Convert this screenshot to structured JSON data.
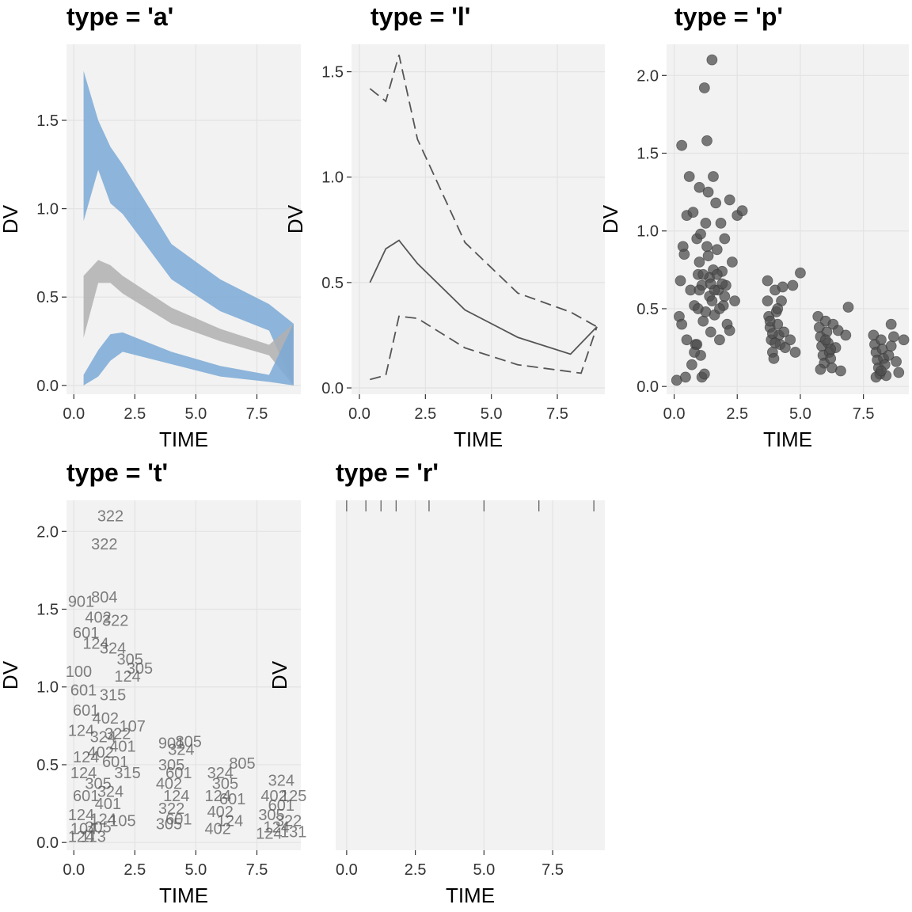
{
  "chart_data": [
    {
      "panel": "a",
      "type": "area",
      "title": "type = 'a'",
      "xlabel": "TIME",
      "ylabel": "DV",
      "xlim": [
        -0.3,
        9.3
      ],
      "ylim": [
        -0.05,
        1.93
      ],
      "xticks": [
        "0.0",
        "2.5",
        "5.0",
        "7.5"
      ],
      "xtick_values": [
        0,
        2.5,
        5,
        7.5
      ],
      "yticks": [
        "0.0",
        "0.5",
        "1.0",
        "1.5"
      ],
      "ytick_values": [
        0,
        0.5,
        1,
        1.5
      ],
      "grid": true,
      "colors": {
        "outer_band": "#7BA9D6",
        "inner_band": "#B0B0B0",
        "panel_bg": "#F2F2F2",
        "grid": "#E3E3E3"
      },
      "x": [
        0.4,
        1,
        1.5,
        2,
        4,
        6,
        8,
        9
      ],
      "series": [
        {
          "band": "upper",
          "low": [
            0.93,
            1.22,
            1.03,
            0.97,
            0.6,
            0.42,
            0.31,
            0.0
          ],
          "high": [
            1.78,
            1.5,
            1.35,
            1.25,
            0.8,
            0.6,
            0.46,
            0.35
          ]
        },
        {
          "band": "middle",
          "low": [
            0.27,
            0.58,
            0.58,
            0.52,
            0.35,
            0.25,
            0.17,
            0.0
          ],
          "high": [
            0.62,
            0.71,
            0.68,
            0.62,
            0.44,
            0.32,
            0.23,
            0.35
          ]
        },
        {
          "band": "lower",
          "low": [
            0.0,
            0.05,
            0.14,
            0.19,
            0.12,
            0.05,
            0.02,
            0.0
          ],
          "high": [
            0.06,
            0.2,
            0.29,
            0.3,
            0.19,
            0.11,
            0.06,
            0.35
          ]
        }
      ]
    },
    {
      "panel": "l",
      "type": "line",
      "title": "type = 'l'",
      "xlabel": "TIME",
      "ylabel": "DV",
      "xlim": [
        -0.3,
        9.3
      ],
      "ylim": [
        -0.03,
        1.63
      ],
      "xticks": [
        "0.0",
        "2.5",
        "5.0",
        "7.5"
      ],
      "xtick_values": [
        0,
        2.5,
        5,
        7.5
      ],
      "yticks": [
        "0.0",
        "0.5",
        "1.0",
        "1.5"
      ],
      "ytick_values": [
        0,
        0.5,
        1,
        1.5
      ],
      "grid": true,
      "colors": {
        "line": "#555555",
        "panel_bg": "#F2F2F2",
        "grid": "#E3E3E3"
      },
      "series": [
        {
          "style": "dashed",
          "x": [
            0.4,
            1,
            1.5,
            2.2,
            4,
            6,
            8,
            9
          ],
          "y": [
            1.42,
            1.36,
            1.58,
            1.18,
            0.69,
            0.45,
            0.36,
            0.29
          ]
        },
        {
          "style": "solid",
          "x": [
            0.4,
            1,
            1.5,
            2.2,
            4,
            6,
            8,
            9
          ],
          "y": [
            0.5,
            0.66,
            0.7,
            0.59,
            0.37,
            0.24,
            0.16,
            0.29
          ]
        },
        {
          "style": "dashed",
          "x": [
            0.4,
            1,
            1.5,
            2.2,
            4,
            6,
            8.4,
            9
          ],
          "y": [
            0.04,
            0.06,
            0.34,
            0.33,
            0.19,
            0.11,
            0.07,
            0.29
          ]
        }
      ]
    },
    {
      "panel": "p",
      "type": "scatter",
      "title": "type = 'p'",
      "xlabel": "TIME",
      "ylabel": "DV",
      "xlim": [
        -0.3,
        9.3
      ],
      "ylim": [
        -0.05,
        2.2
      ],
      "xticks": [
        "0.0",
        "2.5",
        "5.0",
        "7.5"
      ],
      "xtick_values": [
        0,
        2.5,
        5,
        7.5
      ],
      "yticks": [
        "0.0",
        "0.5",
        "1.0",
        "1.5",
        "2.0"
      ],
      "ytick_values": [
        0,
        0.5,
        1,
        1.5,
        2
      ],
      "grid": true,
      "colors": {
        "point": "#4D4D4D",
        "panel_bg": "#F2F2F2",
        "grid": "#E3E3E3"
      },
      "points": [
        [
          0.1,
          0.04
        ],
        [
          0.2,
          0.45
        ],
        [
          0.3,
          1.55
        ],
        [
          0.35,
          0.9
        ],
        [
          0.45,
          0.06
        ],
        [
          0.5,
          1.1
        ],
        [
          0.25,
          0.68
        ],
        [
          0.3,
          0.4
        ],
        [
          0.4,
          0.85
        ],
        [
          0.5,
          0.3
        ],
        [
          0.6,
          1.35
        ],
        [
          0.65,
          0.62
        ],
        [
          0.7,
          0.14
        ],
        [
          0.75,
          1.12
        ],
        [
          0.8,
          0.52
        ],
        [
          0.85,
          0.27
        ],
        [
          0.9,
          0.95
        ],
        [
          0.95,
          0.72
        ],
        [
          0.95,
          0.5
        ],
        [
          1.0,
          1.28
        ],
        [
          1.0,
          0.8
        ],
        [
          1.05,
          0.2
        ],
        [
          1.1,
          0.06
        ],
        [
          1.1,
          0.65
        ],
        [
          1.15,
          0.42
        ],
        [
          1.2,
          1.92
        ],
        [
          1.25,
          1.05
        ],
        [
          1.3,
          0.9
        ],
        [
          1.3,
          1.58
        ],
        [
          1.35,
          1.25
        ],
        [
          1.4,
          0.58
        ],
        [
          1.45,
          0.35
        ],
        [
          1.5,
          2.1
        ],
        [
          1.55,
          1.35
        ],
        [
          1.55,
          0.75
        ],
        [
          1.6,
          0.46
        ],
        [
          1.65,
          1.18
        ],
        [
          1.7,
          0.88
        ],
        [
          1.75,
          0.62
        ],
        [
          1.8,
          0.3
        ],
        [
          1.85,
          1.05
        ],
        [
          1.9,
          0.74
        ],
        [
          1.95,
          0.52
        ],
        [
          2.0,
          0.95
        ],
        [
          2.05,
          0.65
        ],
        [
          2.1,
          0.4
        ],
        [
          2.2,
          1.2
        ],
        [
          2.3,
          0.8
        ],
        [
          2.4,
          0.55
        ],
        [
          2.5,
          1.1
        ],
        [
          2.7,
          1.13
        ],
        [
          2.2,
          0.36
        ],
        [
          1.2,
          0.08
        ],
        [
          0.9,
          0.27
        ],
        [
          0.8,
          0.22
        ],
        [
          1.0,
          0.62
        ],
        [
          1.05,
          0.98
        ],
        [
          1.4,
          0.7
        ],
        [
          1.5,
          0.55
        ],
        [
          1.7,
          0.72
        ],
        [
          2.0,
          0.58
        ],
        [
          1.15,
          0.72
        ],
        [
          1.25,
          0.48
        ],
        [
          1.6,
          0.62
        ],
        [
          1.8,
          0.5
        ],
        [
          1.9,
          0.66
        ],
        [
          1.35,
          0.84
        ],
        [
          1.45,
          0.66
        ],
        [
          3.7,
          0.68
        ],
        [
          3.7,
          0.55
        ],
        [
          3.75,
          0.45
        ],
        [
          3.8,
          0.38
        ],
        [
          3.85,
          0.3
        ],
        [
          3.9,
          0.22
        ],
        [
          3.95,
          0.18
        ],
        [
          4.0,
          0.62
        ],
        [
          4.05,
          0.48
        ],
        [
          4.1,
          0.4
        ],
        [
          4.15,
          0.33
        ],
        [
          4.2,
          0.27
        ],
        [
          4.25,
          0.55
        ],
        [
          4.3,
          0.64
        ],
        [
          4.35,
          0.35
        ],
        [
          4.4,
          0.25
        ],
        [
          3.8,
          0.42
        ],
        [
          3.9,
          0.34
        ],
        [
          4.0,
          0.28
        ],
        [
          4.1,
          0.5
        ],
        [
          4.6,
          0.3
        ],
        [
          4.8,
          0.22
        ],
        [
          5.0,
          0.73
        ],
        [
          4.7,
          0.65
        ],
        [
          5.7,
          0.45
        ],
        [
          5.75,
          0.38
        ],
        [
          5.8,
          0.32
        ],
        [
          5.85,
          0.26
        ],
        [
          5.9,
          0.2
        ],
        [
          5.95,
          0.15
        ],
        [
          6.0,
          0.42
        ],
        [
          6.05,
          0.35
        ],
        [
          6.1,
          0.28
        ],
        [
          6.15,
          0.22
        ],
        [
          6.2,
          0.18
        ],
        [
          6.25,
          0.12
        ],
        [
          6.3,
          0.4
        ],
        [
          6.4,
          0.25
        ],
        [
          6.5,
          0.36
        ],
        [
          6.6,
          0.1
        ],
        [
          6.8,
          0.33
        ],
        [
          6.9,
          0.51
        ],
        [
          5.8,
          0.11
        ],
        [
          6.0,
          0.3
        ],
        [
          6.2,
          0.24
        ],
        [
          7.9,
          0.33
        ],
        [
          7.95,
          0.27
        ],
        [
          8.0,
          0.22
        ],
        [
          8.05,
          0.17
        ],
        [
          8.1,
          0.12
        ],
        [
          8.15,
          0.08
        ],
        [
          8.2,
          0.3
        ],
        [
          8.25,
          0.24
        ],
        [
          8.3,
          0.18
        ],
        [
          8.35,
          0.14
        ],
        [
          8.4,
          0.07
        ],
        [
          8.5,
          0.2
        ],
        [
          8.6,
          0.4
        ],
        [
          8.7,
          0.32
        ],
        [
          8.8,
          0.16
        ],
        [
          8.9,
          0.09
        ],
        [
          9.1,
          0.3
        ],
        [
          8.0,
          0.06
        ],
        [
          8.2,
          0.1
        ],
        [
          8.6,
          0.26
        ]
      ]
    },
    {
      "panel": "t",
      "type": "scatter",
      "title": "type = 't'",
      "xlabel": "TIME",
      "ylabel": "DV",
      "xlim": [
        -0.3,
        9.3
      ],
      "ylim": [
        -0.05,
        2.2
      ],
      "xticks": [
        "0.0",
        "2.5",
        "5.0",
        "7.5"
      ],
      "xtick_values": [
        0,
        2.5,
        5,
        7.5
      ],
      "yticks": [
        "0.0",
        "0.5",
        "1.0",
        "1.5",
        "2.0"
      ],
      "ytick_values": [
        0,
        0.5,
        1,
        1.5,
        2
      ],
      "grid": true,
      "colors": {
        "text": "#555555",
        "panel_bg": "#F2F2F2",
        "grid": "#E3E3E3"
      },
      "labels": [
        {
          "x": 1.5,
          "y": 2.1,
          "text": "322"
        },
        {
          "x": 1.25,
          "y": 1.92,
          "text": "322"
        },
        {
          "x": 1.25,
          "y": 1.58,
          "text": "804"
        },
        {
          "x": 0.3,
          "y": 1.55,
          "text": "901"
        },
        {
          "x": 1.0,
          "y": 1.45,
          "text": "402"
        },
        {
          "x": 1.7,
          "y": 1.43,
          "text": "322"
        },
        {
          "x": 0.5,
          "y": 1.35,
          "text": "601"
        },
        {
          "x": 0.9,
          "y": 1.28,
          "text": "124"
        },
        {
          "x": 1.6,
          "y": 1.25,
          "text": "324"
        },
        {
          "x": 2.3,
          "y": 1.18,
          "text": "305"
        },
        {
          "x": 2.7,
          "y": 1.12,
          "text": "305"
        },
        {
          "x": 0.2,
          "y": 1.1,
          "text": "100"
        },
        {
          "x": 2.2,
          "y": 1.07,
          "text": "124"
        },
        {
          "x": 0.4,
          "y": 0.98,
          "text": "601"
        },
        {
          "x": 1.6,
          "y": 0.95,
          "text": "315"
        },
        {
          "x": 0.5,
          "y": 0.85,
          "text": "601"
        },
        {
          "x": 1.3,
          "y": 0.8,
          "text": "402"
        },
        {
          "x": 2.4,
          "y": 0.75,
          "text": "107"
        },
        {
          "x": 0.3,
          "y": 0.72,
          "text": "124"
        },
        {
          "x": 1.2,
          "y": 0.68,
          "text": "324"
        },
        {
          "x": 2.0,
          "y": 0.62,
          "text": "401"
        },
        {
          "x": 0.5,
          "y": 0.55,
          "text": "124"
        },
        {
          "x": 1.7,
          "y": 0.52,
          "text": "601"
        },
        {
          "x": 2.2,
          "y": 0.45,
          "text": "315"
        },
        {
          "x": 0.4,
          "y": 0.45,
          "text": "124"
        },
        {
          "x": 1.0,
          "y": 0.38,
          "text": "305"
        },
        {
          "x": 0.5,
          "y": 0.3,
          "text": "601"
        },
        {
          "x": 1.4,
          "y": 0.25,
          "text": "401"
        },
        {
          "x": 0.3,
          "y": 0.18,
          "text": "124"
        },
        {
          "x": 1.2,
          "y": 0.15,
          "text": "124"
        },
        {
          "x": 2.0,
          "y": 0.14,
          "text": "105"
        },
        {
          "x": 0.4,
          "y": 0.09,
          "text": "104"
        },
        {
          "x": 1.0,
          "y": 0.1,
          "text": "305"
        },
        {
          "x": 0.3,
          "y": 0.04,
          "text": "124"
        },
        {
          "x": 0.8,
          "y": 0.04,
          "text": "113"
        },
        {
          "x": 1.5,
          "y": 0.33,
          "text": "324"
        },
        {
          "x": 1.1,
          "y": 0.58,
          "text": "402"
        },
        {
          "x": 1.8,
          "y": 0.7,
          "text": "322"
        },
        {
          "x": 4.0,
          "y": 0.64,
          "text": "901"
        },
        {
          "x": 4.7,
          "y": 0.65,
          "text": "805"
        },
        {
          "x": 4.4,
          "y": 0.6,
          "text": "324"
        },
        {
          "x": 4.0,
          "y": 0.5,
          "text": "305"
        },
        {
          "x": 4.3,
          "y": 0.45,
          "text": "601"
        },
        {
          "x": 3.9,
          "y": 0.38,
          "text": "402"
        },
        {
          "x": 4.2,
          "y": 0.3,
          "text": "124"
        },
        {
          "x": 4.0,
          "y": 0.22,
          "text": "322"
        },
        {
          "x": 4.3,
          "y": 0.15,
          "text": "601"
        },
        {
          "x": 3.9,
          "y": 0.12,
          "text": "305"
        },
        {
          "x": 6.9,
          "y": 0.51,
          "text": "805"
        },
        {
          "x": 6.0,
          "y": 0.45,
          "text": "324"
        },
        {
          "x": 6.2,
          "y": 0.38,
          "text": "305"
        },
        {
          "x": 5.9,
          "y": 0.3,
          "text": "124"
        },
        {
          "x": 6.5,
          "y": 0.28,
          "text": "601"
        },
        {
          "x": 6.0,
          "y": 0.2,
          "text": "402"
        },
        {
          "x": 6.4,
          "y": 0.14,
          "text": "124"
        },
        {
          "x": 5.9,
          "y": 0.09,
          "text": "402"
        },
        {
          "x": 8.5,
          "y": 0.4,
          "text": "324"
        },
        {
          "x": 8.2,
          "y": 0.3,
          "text": "402"
        },
        {
          "x": 9.0,
          "y": 0.3,
          "text": "125"
        },
        {
          "x": 8.5,
          "y": 0.24,
          "text": "601"
        },
        {
          "x": 8.1,
          "y": 0.18,
          "text": "305"
        },
        {
          "x": 8.8,
          "y": 0.14,
          "text": "322"
        },
        {
          "x": 8.3,
          "y": 0.1,
          "text": "124"
        },
        {
          "x": 9.0,
          "y": 0.07,
          "text": "131"
        },
        {
          "x": 8.0,
          "y": 0.06,
          "text": "124"
        }
      ]
    },
    {
      "panel": "r",
      "type": "rug",
      "title": "type = 'r'",
      "xlabel": "TIME",
      "ylabel": "DV",
      "xlim": [
        -0.4,
        9.4
      ],
      "xticks": [
        "0.0",
        "2.5",
        "5.0",
        "7.5"
      ],
      "xtick_values": [
        0,
        2.5,
        5,
        7.5
      ],
      "grid": true,
      "colors": {
        "rug": "#555555",
        "panel_bg": "#F2F2F2",
        "grid": "#E3E3E3"
      },
      "rug_x": [
        0,
        0.7,
        1.25,
        1.8,
        3,
        5,
        7,
        9
      ]
    }
  ]
}
